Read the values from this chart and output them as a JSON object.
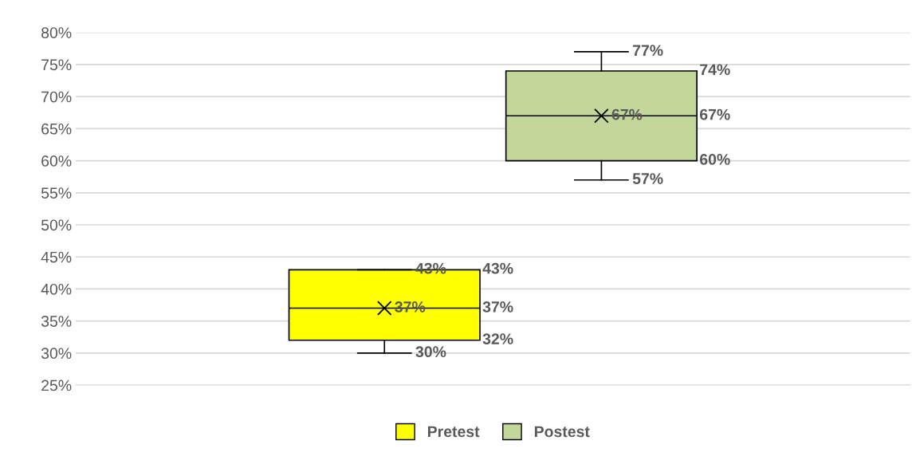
{
  "chart_data": {
    "type": "box",
    "categories": [
      null
    ],
    "series": [
      {
        "name": "Pretest",
        "color": "#ffff00",
        "boxes": [
          {
            "low": 30,
            "q1": 32,
            "median": 37,
            "q3": 43,
            "high": 43,
            "mean": 37
          }
        ]
      },
      {
        "name": "Postest",
        "color": "#c4d79b",
        "boxes": [
          {
            "low": 57,
            "q1": 60,
            "median": 67,
            "q3": 74,
            "high": 77,
            "mean": 67
          }
        ]
      }
    ],
    "annotations": [
      "30%",
      "32%",
      "37%",
      "43%",
      "43%",
      "37%",
      "57%",
      "60%",
      "67%",
      "74%",
      "77%",
      "67%"
    ],
    "ylim": [
      25,
      80
    ],
    "yticks": [
      {
        "value": 25,
        "label": "25%"
      },
      {
        "value": 30,
        "label": "30%"
      },
      {
        "value": 35,
        "label": "35%"
      },
      {
        "value": 40,
        "label": "40%"
      },
      {
        "value": 45,
        "label": "45%"
      },
      {
        "value": 50,
        "label": "50%"
      },
      {
        "value": 55,
        "label": "55%"
      },
      {
        "value": 60,
        "label": "60%"
      },
      {
        "value": 65,
        "label": "65%"
      },
      {
        "value": 70,
        "label": "70%"
      },
      {
        "value": 75,
        "label": "75%"
      },
      {
        "value": 80,
        "label": "80%"
      }
    ],
    "grid": "y",
    "legend": "bottom"
  }
}
